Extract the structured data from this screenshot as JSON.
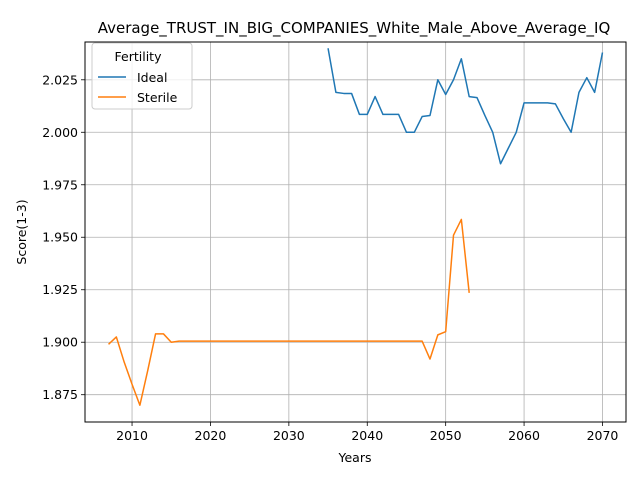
{
  "chart_data": {
    "type": "line",
    "title": "Average_TRUST_IN_BIG_COMPANIES_White_Male_Above_Average_IQ",
    "xlabel": "Years",
    "ylabel": "Score(1-3)",
    "xlim": [
      2004,
      2073
    ],
    "ylim": [
      1.862,
      2.043
    ],
    "xticks": [
      2010,
      2020,
      2030,
      2040,
      2050,
      2060,
      2070
    ],
    "yticks": [
      1.875,
      1.9,
      1.925,
      1.95,
      1.975,
      2.0,
      2.025
    ],
    "ytick_labels": [
      "1.875",
      "1.900",
      "1.925",
      "1.950",
      "1.975",
      "2.000",
      "2.025"
    ],
    "grid": true,
    "legend": {
      "title": "Fertility",
      "position": "top-left"
    },
    "series": [
      {
        "name": "Ideal",
        "color": "#1f77b4",
        "x": [
          2035,
          2036,
          2037,
          2038,
          2039,
          2040,
          2041,
          2042,
          2043,
          2044,
          2045,
          2046,
          2047,
          2048,
          2049,
          2050,
          2051,
          2052,
          2053,
          2054,
          2055,
          2056,
          2057,
          2058,
          2059,
          2060,
          2061,
          2062,
          2063,
          2064,
          2065,
          2066,
          2067,
          2068,
          2069,
          2070
        ],
        "y": [
          2.04,
          2.019,
          2.0185,
          2.0185,
          2.0085,
          2.0085,
          2.017,
          2.0085,
          2.0085,
          2.0085,
          2.0,
          2.0,
          2.0075,
          2.008,
          2.025,
          2.018,
          2.025,
          2.035,
          2.017,
          2.0165,
          2.008,
          2.0,
          1.985,
          1.9925,
          2.0,
          2.014,
          2.014,
          2.014,
          2.014,
          2.0135,
          2.0065,
          2.0,
          2.019,
          2.026,
          2.019,
          2.038
        ]
      },
      {
        "name": "Sterile",
        "color": "#ff7f0e",
        "x": [
          2007,
          2008,
          2009,
          2010,
          2011,
          2012,
          2013,
          2014,
          2015,
          2016,
          2017,
          2018,
          2019,
          2020,
          2021,
          2022,
          2023,
          2024,
          2025,
          2026,
          2027,
          2028,
          2029,
          2030,
          2031,
          2032,
          2033,
          2034,
          2035,
          2036,
          2037,
          2038,
          2039,
          2040,
          2041,
          2042,
          2043,
          2044,
          2045,
          2046,
          2047,
          2048,
          2049,
          2050,
          2051,
          2052,
          2053
        ],
        "y": [
          1.899,
          1.9025,
          1.8905,
          1.88,
          1.87,
          1.8865,
          1.904,
          1.904,
          1.9,
          1.9005,
          1.9005,
          1.9005,
          1.9005,
          1.9005,
          1.9005,
          1.9005,
          1.9005,
          1.9005,
          1.9005,
          1.9005,
          1.9005,
          1.9005,
          1.9005,
          1.9005,
          1.9005,
          1.9005,
          1.9005,
          1.9005,
          1.9005,
          1.9005,
          1.9005,
          1.9005,
          1.9005,
          1.9005,
          1.9005,
          1.9005,
          1.9005,
          1.9005,
          1.9005,
          1.9005,
          1.9005,
          1.892,
          1.9035,
          1.905,
          1.951,
          1.9585,
          1.9235
        ]
      }
    ]
  }
}
